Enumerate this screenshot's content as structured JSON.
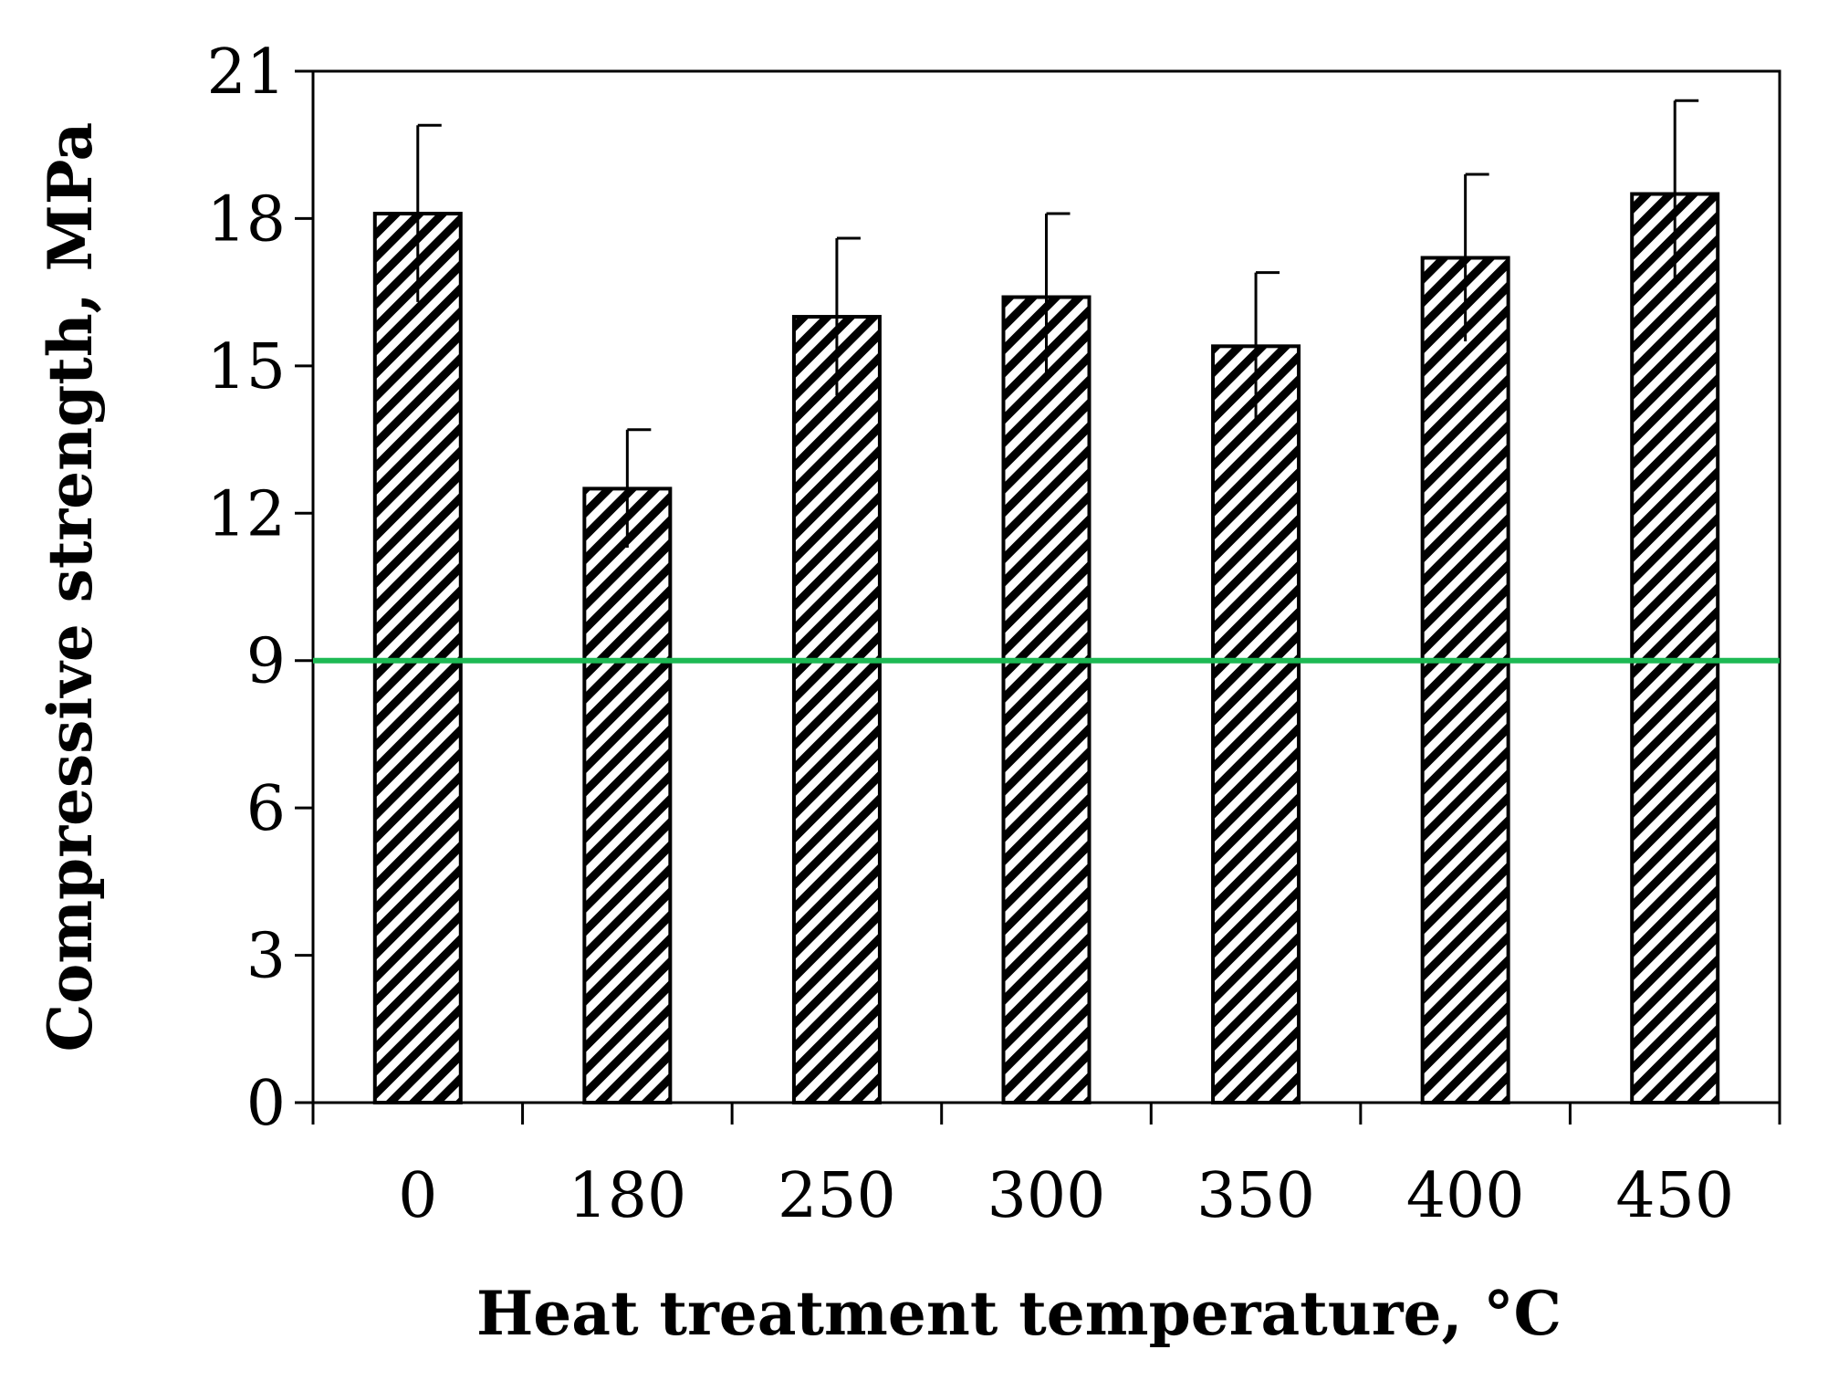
{
  "chart_data": {
    "type": "bar",
    "title": "",
    "xlabel": "Heat treatment temperature, °C",
    "ylabel": "Compressive strength, MPa",
    "categories": [
      "0",
      "180",
      "250",
      "300",
      "350",
      "400",
      "450"
    ],
    "values": [
      18.1,
      12.5,
      16.0,
      16.4,
      15.4,
      17.2,
      18.5
    ],
    "errors": [
      1.8,
      1.2,
      1.6,
      1.7,
      1.5,
      1.7,
      1.9
    ],
    "ylim": [
      0,
      21
    ],
    "yticks": [
      0,
      3,
      6,
      9,
      12,
      15,
      18,
      21
    ],
    "reference_line": {
      "value": 9,
      "color": "#1db954"
    },
    "bar_pattern": "diagonal-hatch",
    "bar_color": "#000000",
    "grid": false
  }
}
